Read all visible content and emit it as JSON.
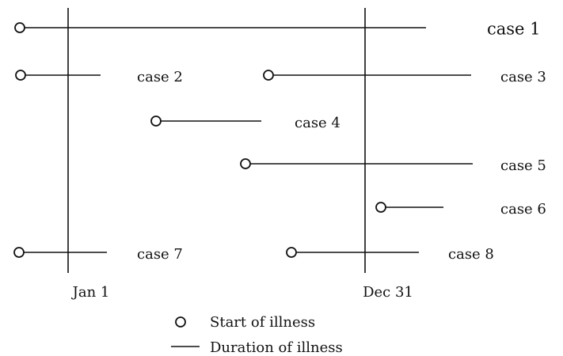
{
  "cases": [
    {
      "label": "case 1"
    },
    {
      "label": "case 2"
    },
    {
      "label": "case 3"
    },
    {
      "label": "case 4"
    },
    {
      "label": "case 5"
    },
    {
      "label": "case 6"
    },
    {
      "label": "case 7"
    },
    {
      "label": "case 8"
    }
  ],
  "markers": [
    {
      "label": "Jan 1"
    },
    {
      "label": "Dec 31"
    }
  ],
  "legend": {
    "start": "Start of illness",
    "duration": "Duration of illness"
  }
}
